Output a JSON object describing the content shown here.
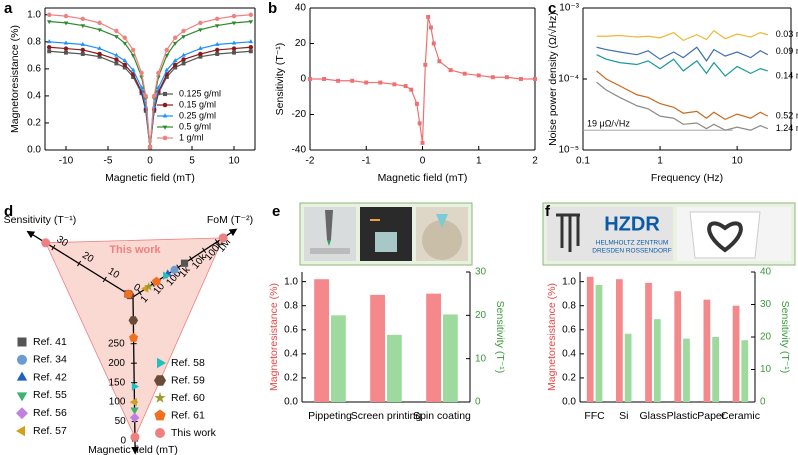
{
  "chart_data": [
    {
      "type": "line",
      "label": "a",
      "xlabel": "Magnetic field (mT)",
      "ylabel": "Magnetoresistance (%)",
      "xlim": [
        -12.5,
        12.5
      ],
      "xticks": [
        -10,
        -5,
        0,
        5,
        10
      ],
      "ylim": [
        0,
        1.05
      ],
      "yticks": [
        {
          "value": 0,
          "label": "0.0"
        },
        0.2,
        0.4,
        0.6,
        0.8,
        {
          "value": 1,
          "label": "1.0"
        }
      ],
      "legend": "lower right",
      "x": [
        -12,
        -10,
        -8,
        -6,
        -4,
        -3,
        -2,
        -1,
        -0.5,
        0,
        0.5,
        1,
        2,
        3,
        4,
        6,
        8,
        10,
        12
      ],
      "series": [
        {
          "name": "0.125 g/ml",
          "color": "#555555",
          "marker": "square",
          "values": [
            0.73,
            0.72,
            0.71,
            0.69,
            0.64,
            0.61,
            0.54,
            0.42,
            0.29,
            0.02,
            0.29,
            0.42,
            0.54,
            0.61,
            0.64,
            0.69,
            0.71,
            0.72,
            0.73
          ]
        },
        {
          "name": "0.15 g/ml",
          "color": "#8b1a1a",
          "marker": "circle",
          "values": [
            0.76,
            0.75,
            0.74,
            0.71,
            0.67,
            0.63,
            0.56,
            0.43,
            0.3,
            0.02,
            0.3,
            0.43,
            0.56,
            0.63,
            0.67,
            0.71,
            0.74,
            0.75,
            0.76
          ]
        },
        {
          "name": "0.25 g/ml",
          "color": "#1e90ff",
          "marker": "triangle",
          "values": [
            0.8,
            0.79,
            0.78,
            0.75,
            0.7,
            0.66,
            0.59,
            0.46,
            0.32,
            0.02,
            0.32,
            0.46,
            0.59,
            0.66,
            0.7,
            0.75,
            0.78,
            0.79,
            0.8
          ]
        },
        {
          "name": "0.5 g/ml",
          "color": "#2e8b2e",
          "marker": "triangle-down",
          "values": [
            0.95,
            0.94,
            0.92,
            0.89,
            0.84,
            0.79,
            0.7,
            0.54,
            0.38,
            0.02,
            0.38,
            0.54,
            0.7,
            0.79,
            0.84,
            0.89,
            0.92,
            0.94,
            0.95
          ]
        },
        {
          "name": "1 g/ml",
          "color": "#f08080",
          "marker": "circle",
          "values": [
            1.0,
            0.99,
            0.97,
            0.94,
            0.88,
            0.83,
            0.74,
            0.57,
            0.4,
            0.02,
            0.4,
            0.57,
            0.74,
            0.83,
            0.88,
            0.94,
            0.97,
            0.99,
            1.0
          ]
        }
      ]
    },
    {
      "type": "line",
      "label": "b",
      "xlabel": "Magnetic field (mT)",
      "ylabel": "Sensitivity (T⁻¹)",
      "xlim": [
        -2,
        2
      ],
      "xticks": [
        -2,
        -1,
        0,
        1,
        2
      ],
      "ylim": [
        -40,
        40
      ],
      "yticks": [
        -40,
        -20,
        0,
        20,
        40
      ],
      "x": [
        -2,
        -1.75,
        -1.5,
        -1.25,
        -1,
        -0.75,
        -0.5,
        -0.3,
        -0.2,
        -0.1,
        -0.05,
        0,
        0.05,
        0.1,
        0.15,
        0.2,
        0.3,
        0.5,
        0.75,
        1,
        1.25,
        1.5,
        1.75,
        2
      ],
      "series": [
        {
          "color": "#f07070",
          "marker": "square",
          "values": [
            0,
            0,
            -1,
            -1,
            -2,
            -2,
            -3,
            -4,
            -6,
            -14,
            -25,
            -36,
            8,
            35,
            29,
            20,
            10,
            5,
            3,
            2,
            1,
            1,
            0,
            0
          ]
        }
      ]
    },
    {
      "type": "line",
      "label": "c",
      "xlabel": "Frequency (Hz)",
      "ylabel": "Noise power density (Ω/√Hz)",
      "log_x": true,
      "log_y": true,
      "xlim": [
        0.1,
        50
      ],
      "xticks": [
        0.1,
        1,
        10
      ],
      "ylim": [
        1e-05,
        0.001
      ],
      "yticks": [
        {
          "value": 1e-05,
          "label": "10⁻⁵"
        },
        {
          "value": 0.0001,
          "label": "10⁻⁴"
        },
        {
          "value": 0.001,
          "label": "10⁻³"
        }
      ],
      "legend": "line-end",
      "annotation": {
        "text": "19 μΩ/√Hz",
        "y": 1.9e-05
      },
      "x": [
        0.15,
        0.2,
        0.3,
        0.5,
        0.7,
        1,
        1.5,
        2,
        3,
        4,
        5,
        7,
        10,
        15,
        20,
        25
      ],
      "series": [
        {
          "name": "0.03 mA",
          "color": "#f2b632",
          "values": [
            0.0004,
            0.0004,
            0.00041,
            0.00039,
            0.0004,
            0.00038,
            0.00045,
            0.00035,
            0.00042,
            0.00036,
            0.00048,
            0.00037,
            0.00043,
            0.00039,
            0.00045,
            0.00042
          ]
        },
        {
          "name": "0.09 mA",
          "color": "#3f6fb0",
          "values": [
            0.00028,
            0.00026,
            0.00024,
            0.00022,
            0.00025,
            0.00019,
            0.00024,
            0.0002,
            0.00028,
            0.00018,
            0.00026,
            0.00021,
            0.00024,
            0.0002,
            0.00025,
            0.00022
          ]
        },
        {
          "name": "0.14 mA",
          "color": "#1a9a9a",
          "values": [
            0.00022,
            0.00019,
            0.00017,
            0.00016,
            0.00018,
            0.00014,
            0.00019,
            0.00013,
            0.00018,
            0.00012,
            0.00017,
            0.00011,
            0.00015,
            0.00012,
            0.00014,
            0.00013
          ]
        },
        {
          "name": "0.52 mA",
          "color": "#c8691c",
          "values": [
            0.00013,
            0.0001,
            8e-05,
            6e-05,
            5.5e-05,
            4.5e-05,
            4e-05,
            3.3e-05,
            3.5e-05,
            2.8e-05,
            3.4e-05,
            2.7e-05,
            3.2e-05,
            2.8e-05,
            3.4e-05,
            3e-05
          ]
        },
        {
          "name": "1.24 mA",
          "color": "#8a8a8a",
          "values": [
            9e-05,
            7e-05,
            5.5e-05,
            4.2e-05,
            3.8e-05,
            3e-05,
            2.8e-05,
            2.3e-05,
            2.4e-05,
            2e-05,
            2.3e-05,
            1.9e-05,
            2.1e-05,
            1.9e-05,
            2.2e-05,
            2e-05
          ]
        }
      ]
    },
    {
      "type": "triangle",
      "label": "d",
      "annotation": "This work",
      "axes": [
        {
          "title": "Sensitivity (T⁻¹)",
          "lim": [
            -1,
            36
          ],
          "ticks": [
            0,
            10,
            20,
            30
          ]
        },
        {
          "title": "FoM (T⁻²)",
          "log": true,
          "lim": [
            0.3,
            5000000
          ],
          "ticks": [
            1,
            10,
            100,
            {
              "value": 1000,
              "label": "1k"
            },
            {
              "value": 10000,
              "label": "10k"
            },
            {
              "value": 100000,
              "label": "100k"
            },
            {
              "value": 1000000,
              "label": "1M"
            }
          ]
        },
        {
          "title": "Magnetic field (mT)",
          "lim": [
            370,
            0
          ],
          "ticks": [
            0,
            50,
            100,
            150,
            200,
            250
          ]
        }
      ],
      "series": [
        {
          "name": "Ref. 41",
          "color": "#555555",
          "marker": "square",
          "values": [
            1,
            3000,
            null
          ]
        },
        {
          "name": "Ref. 34",
          "color": "#6a9bd1",
          "marker": "circle",
          "values": [
            0.5,
            500,
            null
          ]
        },
        {
          "name": "Ref. 42",
          "color": "#2060c0",
          "marker": "triangle",
          "values": [
            null,
            150,
            null
          ]
        },
        {
          "name": "Ref. 55",
          "color": "#3cb371",
          "marker": "triangle-down",
          "values": [
            null,
            null,
            80
          ]
        },
        {
          "name": "Ref. 56",
          "color": "#c080e0",
          "marker": "diamond",
          "values": [
            null,
            null,
            60
          ]
        },
        {
          "name": "Ref. 57",
          "color": "#d4a017",
          "marker": "triangle-left",
          "values": [
            0.5,
            3,
            100
          ]
        },
        {
          "name": "Ref. 58",
          "color": "#20c0c0",
          "marker": "triangle-right",
          "values": [
            null,
            100,
            140
          ]
        },
        {
          "name": "Ref. 59",
          "color": "#6b4a3a",
          "marker": "hexagon",
          "values": [
            0.3,
            null,
            310
          ]
        },
        {
          "name": "Ref. 60",
          "color": "#9a9a30",
          "marker": "star",
          "values": [
            null,
            5,
            null
          ]
        },
        {
          "name": "Ref. 61",
          "color": "#f07020",
          "marker": "pentagon",
          "values": [
            0.8,
            20,
            265
          ]
        },
        {
          "name": "This work",
          "color": "#f08080",
          "marker": "circle",
          "fill": "#fbd9d3",
          "values": [
            33,
            3000000,
            10
          ]
        }
      ]
    },
    {
      "type": "bar",
      "label": "e",
      "ylabel": "Magnetoresistance (%)",
      "y2label": "Sensitivity (T⁻¹)",
      "categories": [
        "Pippeting",
        "Screen printing",
        "Spin coating"
      ],
      "ylim": [
        0,
        1.08
      ],
      "yticks": [
        {
          "value": 0,
          "label": "0.0"
        },
        0.2,
        0.4,
        0.6,
        0.8,
        {
          "value": 1,
          "label": "1.0"
        }
      ],
      "y2lim": [
        0,
        30
      ],
      "y2ticks": [
        0,
        10,
        20,
        30
      ],
      "series": [
        {
          "name": "Magnetoresistance",
          "color": "#f4888a",
          "values": [
            1.02,
            0.89,
            0.9
          ]
        },
        {
          "name": "Sensitivity",
          "color": "#9ed99e",
          "axis": "y2",
          "values": [
            20,
            15.5,
            20.2
          ]
        }
      ]
    },
    {
      "type": "bar",
      "label": "f",
      "ylabel": "Magnetoresistance (%)",
      "y2label": "Sensitivity (T⁻¹)",
      "categories": [
        "FFC",
        "Si",
        "Glass",
        "Plastic",
        "Paper",
        "Ceramic"
      ],
      "ylim": [
        0,
        1.08
      ],
      "yticks": [
        {
          "value": 0,
          "label": "0.0"
        },
        0.2,
        0.4,
        0.6,
        0.8,
        {
          "value": 1,
          "label": "1.0"
        }
      ],
      "y2lim": [
        0,
        40
      ],
      "y2ticks": [
        0,
        10,
        20,
        30,
        40
      ],
      "series": [
        {
          "name": "Magnetoresistance",
          "color": "#f4888a",
          "values": [
            1.04,
            1.02,
            0.99,
            0.92,
            0.85,
            0.8
          ]
        },
        {
          "name": "Sensitivity",
          "color": "#9ed99e",
          "axis": "y2",
          "values": [
            36,
            21,
            25.5,
            19.5,
            20,
            19
          ]
        }
      ]
    }
  ],
  "photo_text": {
    "logo": "HZDR",
    "logo_sub": [
      "HELMHOLTZ ZENTRUM",
      "DRESDEN ROSSENDORF"
    ]
  }
}
